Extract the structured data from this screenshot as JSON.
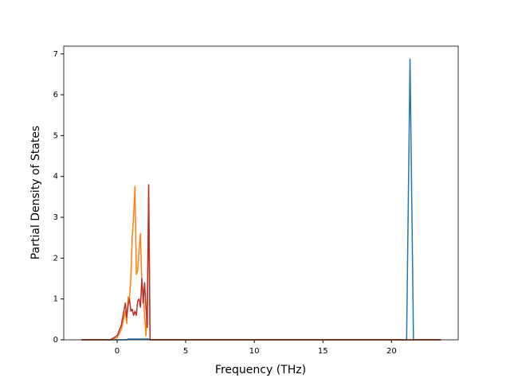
{
  "chart_data": {
    "type": "line",
    "x_label": "Frequency (THz)",
    "y_label": "Partial Density of States",
    "x": [
      -2.6,
      -0.5,
      0,
      0.3,
      0.6,
      0.7,
      0.8,
      0.9,
      1.0,
      1.1,
      1.2,
      1.3,
      1.4,
      1.5,
      1.6,
      1.7,
      1.8,
      1.9,
      2.0,
      2.1,
      2.2,
      2.3,
      2.4,
      2.5,
      21.1,
      21.35,
      21.6,
      23.6
    ],
    "series": [
      {
        "color": "#1f77b4",
        "values": [
          0,
          0,
          0,
          0,
          0,
          0,
          0.02,
          0.02,
          0.02,
          0.02,
          0.02,
          0.02,
          0.02,
          0.02,
          0.02,
          0.02,
          0.02,
          0.02,
          0.02,
          0.02,
          0.02,
          0.02,
          0,
          0,
          0,
          6.87,
          0,
          0
        ]
      },
      {
        "color": "#ff7f0e",
        "values": [
          0,
          0,
          0.05,
          0.25,
          0.7,
          0.4,
          1.05,
          1.0,
          1.5,
          2.5,
          3.0,
          3.75,
          1.6,
          1.7,
          2.2,
          2.6,
          1.4,
          1.2,
          0.6,
          0.1,
          1.0,
          3.7,
          0,
          0,
          0,
          0,
          0,
          0
        ]
      },
      {
        "color": "#b8302a",
        "values": [
          0,
          0,
          0.1,
          0.35,
          0.9,
          0.55,
          0.85,
          1.0,
          0.7,
          0.75,
          0.6,
          0.7,
          0.6,
          0.95,
          1.0,
          0.8,
          1.5,
          0.9,
          1.4,
          0.8,
          0.3,
          3.8,
          0,
          0,
          0,
          0,
          0,
          0
        ]
      }
    ],
    "xlim": [
      -3.89,
      24.86
    ],
    "ylim": [
      0,
      7.19
    ],
    "xticks": [
      0,
      5,
      10,
      15,
      20
    ],
    "yticks": [
      0,
      1,
      2,
      3,
      4,
      5,
      6,
      7
    ]
  }
}
